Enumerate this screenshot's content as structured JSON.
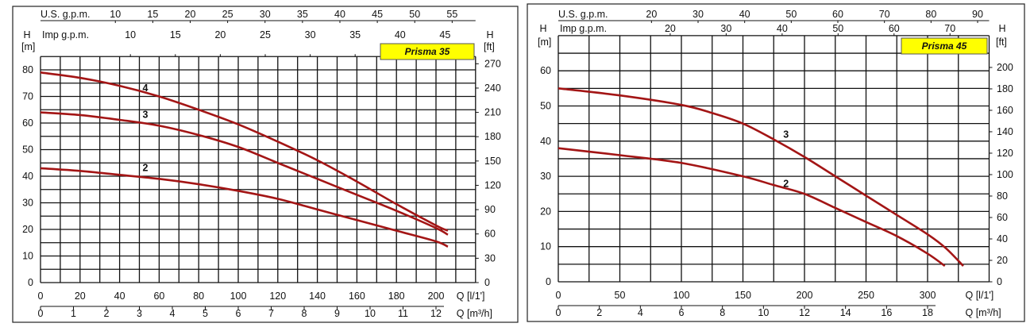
{
  "chart_data": [
    {
      "type": "line",
      "title": "Prisma 35",
      "colors": {
        "curve": "#a31515",
        "grid": "#111111",
        "title_bg": "#ffff00"
      },
      "ylabel": "H",
      "yunit": "[m]",
      "ylabel_right": "H",
      "yunit_right": "[ft]",
      "xlabel": "Q [l/1']",
      "xlabel2": "Q [m³/h]",
      "top_axis_1_label": "U.S.  g.p.m.",
      "top_axis_2_label": "Imp  g.p.m.",
      "xlim": [
        0,
        220
      ],
      "ylim": [
        0,
        85
      ],
      "x_ticks": [
        0,
        20,
        40,
        60,
        80,
        100,
        120,
        140,
        160,
        180,
        200
      ],
      "y_ticks": [
        0,
        10,
        20,
        30,
        40,
        50,
        60,
        70,
        80
      ],
      "ft_ticks": [
        0,
        30,
        60,
        90,
        120,
        150,
        180,
        210,
        240,
        270
      ],
      "m3h_ticks": [
        0,
        1,
        2,
        3,
        4,
        5,
        6,
        7,
        8,
        9,
        10,
        11,
        12
      ],
      "usgpm_ticks": [
        10,
        15,
        20,
        25,
        30,
        35,
        40,
        45,
        50,
        55
      ],
      "impgpm_ticks": [
        10,
        15,
        20,
        25,
        30,
        35,
        40,
        45
      ],
      "grid": true,
      "series": [
        {
          "name": "4",
          "x": [
            0,
            20,
            40,
            60,
            80,
            100,
            120,
            140,
            160,
            180,
            200,
            206
          ],
          "y": [
            79,
            77,
            74,
            70,
            65,
            59.5,
            53,
            46,
            38,
            29.5,
            21.5,
            19.5
          ],
          "label_at": [
            53,
            72
          ]
        },
        {
          "name": "3",
          "x": [
            0,
            20,
            40,
            60,
            80,
            100,
            120,
            140,
            160,
            180,
            200,
            206
          ],
          "y": [
            64,
            63,
            61.2,
            59,
            55.5,
            51,
            45,
            39,
            33,
            27,
            20.5,
            18
          ],
          "label_at": [
            53,
            62
          ]
        },
        {
          "name": "2",
          "x": [
            0,
            20,
            40,
            60,
            80,
            100,
            120,
            140,
            160,
            180,
            200,
            206
          ],
          "y": [
            43,
            42,
            40.5,
            39,
            37,
            34.5,
            31.5,
            27.5,
            23.5,
            19.5,
            15.5,
            13.5
          ],
          "label_at": [
            53,
            42
          ]
        }
      ]
    },
    {
      "type": "line",
      "title": "Prisma 45",
      "colors": {
        "curve": "#a31515",
        "grid": "#111111",
        "title_bg": "#ffff00"
      },
      "ylabel": "H",
      "yunit": "[m]",
      "ylabel_right": "H",
      "yunit_right": "[ft]",
      "xlabel": "Q [l/1']",
      "xlabel2": "Q [m³/h]",
      "top_axis_1_label": "U.S.  g.p.m.",
      "top_axis_2_label": "Imp  g.p.m.",
      "xlim": [
        0,
        350
      ],
      "ylim": [
        0,
        70
      ],
      "x_ticks": [
        0,
        50,
        100,
        150,
        200,
        250,
        300
      ],
      "y_ticks": [
        0,
        10,
        20,
        30,
        40,
        50,
        60
      ],
      "ft_ticks": [
        0,
        20,
        40,
        60,
        80,
        100,
        120,
        140,
        160,
        180,
        200
      ],
      "m3h_ticks": [
        0,
        2,
        4,
        6,
        8,
        10,
        12,
        14,
        16,
        18
      ],
      "usgpm_ticks": [
        20,
        30,
        40,
        50,
        60,
        70,
        80,
        90
      ],
      "impgpm_ticks": [
        20,
        30,
        40,
        50,
        60,
        70
      ],
      "grid": true,
      "series": [
        {
          "name": "3",
          "x": [
            0,
            50,
            100,
            125,
            150,
            175,
            200,
            225,
            250,
            275,
            300,
            315,
            329
          ],
          "y": [
            55,
            53,
            50.3,
            48,
            45,
            40.5,
            35.5,
            30,
            24.5,
            19,
            13.5,
            9.5,
            4.5
          ],
          "label_at": [
            185,
            41
          ]
        },
        {
          "name": "2",
          "x": [
            0,
            50,
            100,
            150,
            175,
            200,
            225,
            250,
            275,
            300,
            314
          ],
          "y": [
            38,
            36,
            33.8,
            30,
            27.5,
            25,
            21,
            17,
            13,
            8,
            4.5
          ],
          "label_at": [
            185,
            27
          ]
        }
      ]
    }
  ]
}
